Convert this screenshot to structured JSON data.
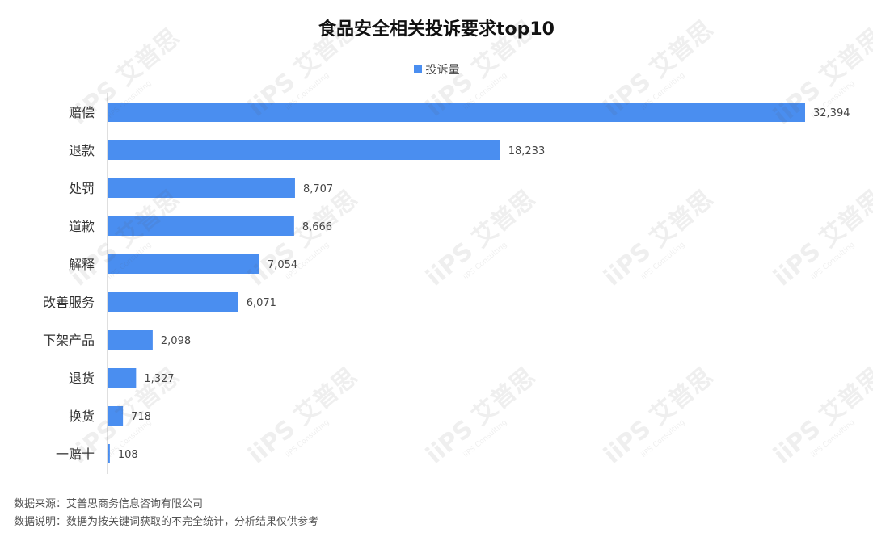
{
  "chart_data": {
    "type": "bar",
    "orientation": "horizontal",
    "title": "食品安全相关投诉要求top10",
    "categories": [
      "赔偿",
      "退款",
      "处罚",
      "道歉",
      "解释",
      "改善服务",
      "下架产品",
      "退货",
      "换货",
      "一赔十"
    ],
    "series": [
      {
        "name": "投诉量",
        "values": [
          32394,
          18233,
          8707,
          8666,
          7054,
          6071,
          2098,
          1327,
          718,
          108
        ],
        "labels": [
          "32,394",
          "18,233",
          "8,707",
          "8,666",
          "7,054",
          "6,071",
          "2,098",
          "1,327",
          "718",
          "108"
        ]
      }
    ],
    "xlim": [
      0,
      32394
    ],
    "grid": false,
    "legend_position": "top-center"
  },
  "footer": {
    "source": "数据来源：艾普思商务信息咨询有限公司",
    "note": "数据说明：数据为按关键词获取的不完全统计，分析结果仅供参考"
  },
  "watermark": {
    "text": "iiPS 艾普思",
    "subtext": "iiPS Consulting"
  },
  "colors": {
    "bar": "#4A8EF0",
    "axis": "#BFBFBF",
    "label": "#444444"
  }
}
